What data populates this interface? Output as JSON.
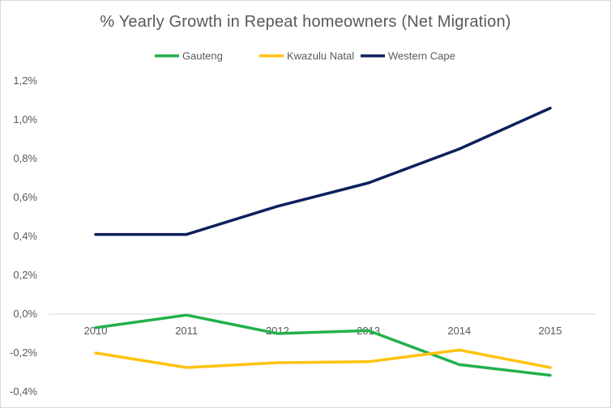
{
  "chart_data": {
    "type": "line",
    "title": "% Yearly Growth in Repeat homeowners (Net Migration)",
    "xlabel": "",
    "ylabel": "",
    "categories": [
      "2010",
      "2011",
      "2012",
      "2013",
      "2014",
      "2015"
    ],
    "y_ticks": [
      "1,2%",
      "1,0%",
      "0,8%",
      "0,6%",
      "0,4%",
      "0,2%",
      "0,0%",
      "-0,2%",
      "-0,4%"
    ],
    "ylim": [
      -0.4,
      1.2
    ],
    "legend_position": "top",
    "grid": false,
    "series": [
      {
        "name": "Gauteng",
        "color": "#22b14c",
        "values": [
          -0.07,
          -0.005,
          -0.1,
          -0.085,
          -0.26,
          -0.315
        ]
      },
      {
        "name": "Kwazulu Natal",
        "color": "#ffc20e",
        "values": [
          -0.2,
          -0.275,
          -0.25,
          -0.245,
          -0.185,
          -0.275
        ]
      },
      {
        "name": "Western Cape",
        "color": "#0d1f5c",
        "values": [
          0.41,
          0.41,
          0.555,
          0.675,
          0.85,
          1.06
        ]
      }
    ]
  }
}
